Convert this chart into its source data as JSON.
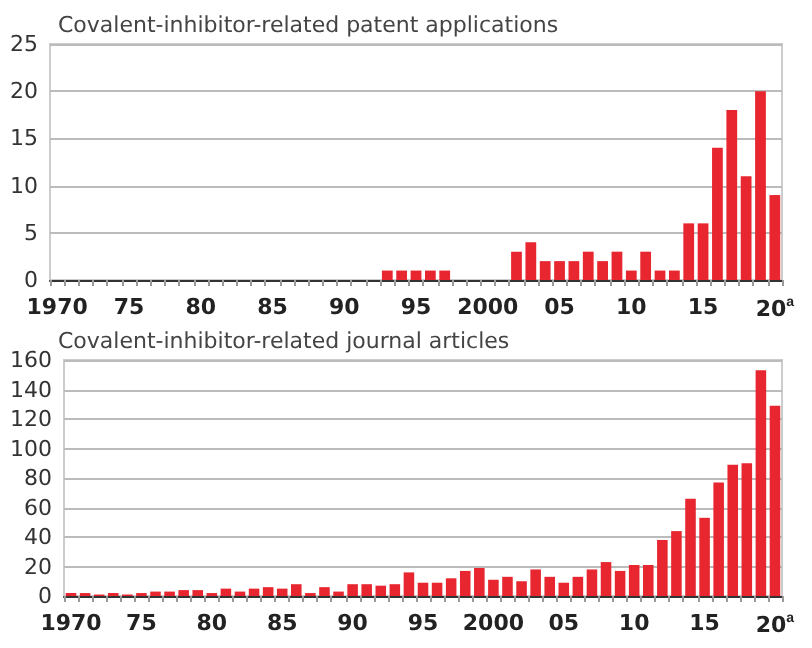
{
  "chart_data": [
    {
      "type": "bar",
      "title": "Covalent-inhibitor-related patent applications",
      "categories": [
        "1970",
        null,
        null,
        null,
        null,
        "75",
        null,
        null,
        null,
        null,
        "80",
        null,
        null,
        null,
        null,
        "85",
        null,
        null,
        null,
        null,
        "90",
        null,
        null,
        null,
        null,
        "95",
        null,
        null,
        null,
        null,
        "2000",
        null,
        null,
        null,
        null,
        "05",
        null,
        null,
        null,
        null,
        "10",
        null,
        null,
        null,
        null,
        "15",
        null,
        null,
        null,
        null,
        "20$^{a}$"
      ],
      "values": [
        0,
        0,
        0,
        0,
        0,
        0,
        0,
        0,
        0,
        0,
        0,
        0,
        0,
        0,
        0,
        0,
        0,
        0,
        0,
        0,
        0,
        0,
        0,
        1,
        1,
        1,
        1,
        1,
        0,
        0,
        0,
        0,
        3,
        4,
        2,
        2,
        2,
        3,
        2,
        3,
        1,
        3,
        1,
        1,
        6,
        6,
        14,
        18,
        11,
        20,
        9
      ],
      "color": "#e8262f",
      "ylim": [
        0,
        25
      ],
      "yticks": [
        0,
        5,
        10,
        15,
        20,
        25
      ],
      "grid": "y"
    },
    {
      "type": "bar",
      "title": "Covalent-inhibitor-related journal articles",
      "categories": [
        "1970",
        null,
        null,
        null,
        null,
        "75",
        null,
        null,
        null,
        null,
        "80",
        null,
        null,
        null,
        null,
        "85",
        null,
        null,
        null,
        null,
        "90",
        null,
        null,
        null,
        null,
        "95",
        null,
        null,
        null,
        null,
        "2000",
        null,
        null,
        null,
        null,
        "05",
        null,
        null,
        null,
        null,
        "10",
        null,
        null,
        null,
        null,
        "15",
        null,
        null,
        null,
        null,
        "20$^{a}$"
      ],
      "values": [
        2,
        2,
        1,
        2,
        1,
        2,
        3,
        3,
        4,
        4,
        2,
        5,
        3,
        5,
        6,
        5,
        8,
        2,
        6,
        3,
        8,
        8,
        7,
        8,
        16,
        9,
        9,
        12,
        17,
        19,
        11,
        13,
        10,
        18,
        13,
        9,
        13,
        18,
        23,
        17,
        21,
        21,
        38,
        44,
        66,
        53,
        77,
        89,
        90,
        153,
        129
      ],
      "color": "#e8262f",
      "ylim": [
        0,
        160
      ],
      "yticks": [
        0,
        20,
        40,
        60,
        80,
        100,
        120,
        140,
        160
      ],
      "grid": "y"
    }
  ]
}
